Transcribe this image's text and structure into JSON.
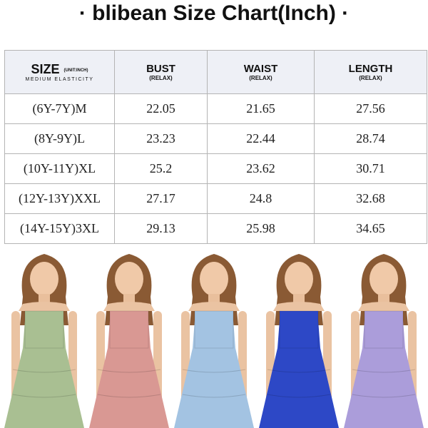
{
  "header": {
    "title": "· blibean Size Chart(Inch) ·"
  },
  "table": {
    "header": {
      "size": "SIZE",
      "unit": "(UNIT:INCH)",
      "note": "MEDIUM ELASTICITY",
      "columns": [
        {
          "label": "BUST",
          "sub": "(RELAX)"
        },
        {
          "label": "WAIST",
          "sub": "(RELAX)"
        },
        {
          "label": "LENGTH",
          "sub": "(RELAX)"
        }
      ]
    },
    "rows": [
      [
        "(6Y-7Y)M",
        22.05,
        21.65,
        27.56
      ],
      [
        "(8Y-9Y)L",
        23.23,
        22.44,
        28.74
      ],
      [
        "(10Y-11Y)XL",
        25.2,
        23.62,
        30.71
      ],
      [
        "(12Y-13Y)XXL",
        27.17,
        24.8,
        32.68
      ],
      [
        "(14Y-15Y)3XL",
        29.13,
        25.98,
        34.65
      ]
    ]
  }
}
